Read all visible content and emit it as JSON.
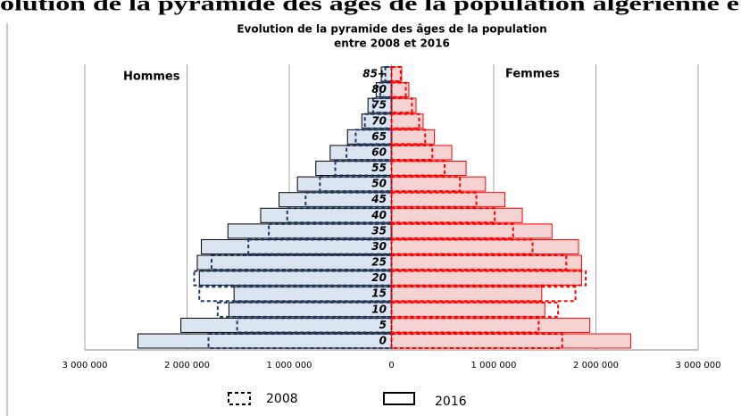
{
  "heading": "olution de la pyramide des âges de la population algérienne e",
  "chart_data": {
    "type": "pyramid",
    "title": [
      "Evolution de la pyramide des âges de la population",
      "entre 2008 et 2016"
    ],
    "categories": [
      "0",
      "5",
      "10",
      "15",
      "20",
      "25",
      "30",
      "35",
      "40",
      "45",
      "50",
      "55",
      "60",
      "65",
      "70",
      "75",
      "80",
      "85+"
    ],
    "sides": [
      {
        "name": "Hommes",
        "key": "men",
        "fill": "#dbe5f1",
        "color": "#000000",
        "dash_color": "#1f3864"
      },
      {
        "name": "Femmes",
        "key": "women",
        "fill": "#f5d3d3",
        "color": "#ff0000",
        "dash_color": "#ff0000"
      }
    ],
    "series": [
      {
        "name": "2016",
        "dashed": false,
        "men": [
          2480000,
          2060000,
          1590000,
          1540000,
          1880000,
          1900000,
          1860000,
          1600000,
          1280000,
          1100000,
          920000,
          740000,
          600000,
          430000,
          290000,
          230000,
          150000,
          100000
        ],
        "women": [
          2340000,
          1940000,
          1500000,
          1470000,
          1860000,
          1860000,
          1830000,
          1570000,
          1280000,
          1110000,
          920000,
          730000,
          590000,
          420000,
          310000,
          240000,
          170000,
          100000
        ]
      },
      {
        "name": "2008",
        "dashed": true,
        "men": [
          1790000,
          1510000,
          1700000,
          1880000,
          1930000,
          1760000,
          1400000,
          1200000,
          1020000,
          840000,
          700000,
          550000,
          440000,
          350000,
          260000,
          180000,
          110000,
          60000
        ],
        "women": [
          1670000,
          1440000,
          1630000,
          1800000,
          1900000,
          1710000,
          1380000,
          1190000,
          1010000,
          830000,
          670000,
          520000,
          400000,
          330000,
          270000,
          200000,
          140000,
          90000
        ]
      }
    ],
    "xlim": [
      -3000000,
      3000000
    ],
    "xticks": [
      {
        "value": -3000000,
        "label": "3 000 000"
      },
      {
        "value": -2000000,
        "label": "2 000 000"
      },
      {
        "value": -1000000,
        "label": "1 000 000"
      },
      0,
      {
        "value": 1000000,
        "label": "1 000 000"
      },
      {
        "value": 2000000,
        "label": "2 000 000"
      },
      {
        "value": 3000000,
        "label": "3 000 000"
      }
    ],
    "grid": true
  }
}
